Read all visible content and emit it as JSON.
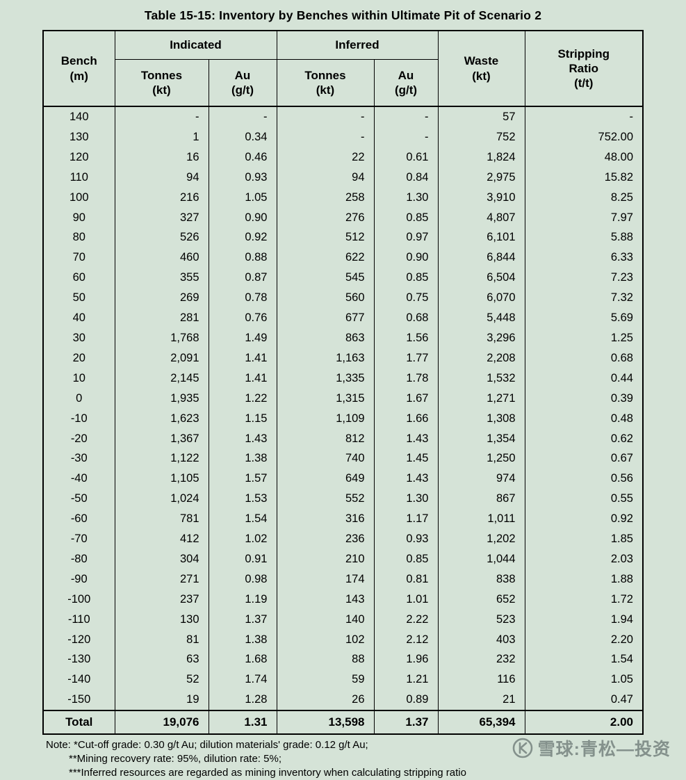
{
  "page": {
    "title": "Table 15-15: Inventory by Benches within Ultimate Pit of Scenario 2",
    "background": "#d5e3d7"
  },
  "table": {
    "headers": {
      "bench": "Bench\n(m)",
      "indicated": "Indicated",
      "inferred": "Inferred",
      "tonnes": "Tonnes\n(kt)",
      "au": "Au\n(g/t)",
      "waste": "Waste\n(kt)",
      "stripping": "Stripping\nRatio\n(t/t)"
    },
    "rows": [
      [
        "140",
        "-",
        "-",
        "-",
        "-",
        "57",
        "-"
      ],
      [
        "130",
        "1",
        "0.34",
        "-",
        "-",
        "752",
        "752.00"
      ],
      [
        "120",
        "16",
        "0.46",
        "22",
        "0.61",
        "1,824",
        "48.00"
      ],
      [
        "110",
        "94",
        "0.93",
        "94",
        "0.84",
        "2,975",
        "15.82"
      ],
      [
        "100",
        "216",
        "1.05",
        "258",
        "1.30",
        "3,910",
        "8.25"
      ],
      [
        "90",
        "327",
        "0.90",
        "276",
        "0.85",
        "4,807",
        "7.97"
      ],
      [
        "80",
        "526",
        "0.92",
        "512",
        "0.97",
        "6,101",
        "5.88"
      ],
      [
        "70",
        "460",
        "0.88",
        "622",
        "0.90",
        "6,844",
        "6.33"
      ],
      [
        "60",
        "355",
        "0.87",
        "545",
        "0.85",
        "6,504",
        "7.23"
      ],
      [
        "50",
        "269",
        "0.78",
        "560",
        "0.75",
        "6,070",
        "7.32"
      ],
      [
        "40",
        "281",
        "0.76",
        "677",
        "0.68",
        "5,448",
        "5.69"
      ],
      [
        "30",
        "1,768",
        "1.49",
        "863",
        "1.56",
        "3,296",
        "1.25"
      ],
      [
        "20",
        "2,091",
        "1.41",
        "1,163",
        "1.77",
        "2,208",
        "0.68"
      ],
      [
        "10",
        "2,145",
        "1.41",
        "1,335",
        "1.78",
        "1,532",
        "0.44"
      ],
      [
        "0",
        "1,935",
        "1.22",
        "1,315",
        "1.67",
        "1,271",
        "0.39"
      ],
      [
        "-10",
        "1,623",
        "1.15",
        "1,109",
        "1.66",
        "1,308",
        "0.48"
      ],
      [
        "-20",
        "1,367",
        "1.43",
        "812",
        "1.43",
        "1,354",
        "0.62"
      ],
      [
        "-30",
        "1,122",
        "1.38",
        "740",
        "1.45",
        "1,250",
        "0.67"
      ],
      [
        "-40",
        "1,105",
        "1.57",
        "649",
        "1.43",
        "974",
        "0.56"
      ],
      [
        "-50",
        "1,024",
        "1.53",
        "552",
        "1.30",
        "867",
        "0.55"
      ],
      [
        "-60",
        "781",
        "1.54",
        "316",
        "1.17",
        "1,011",
        "0.92"
      ],
      [
        "-70",
        "412",
        "1.02",
        "236",
        "0.93",
        "1,202",
        "1.85"
      ],
      [
        "-80",
        "304",
        "0.91",
        "210",
        "0.85",
        "1,044",
        "2.03"
      ],
      [
        "-90",
        "271",
        "0.98",
        "174",
        "0.81",
        "838",
        "1.88"
      ],
      [
        "-100",
        "237",
        "1.19",
        "143",
        "1.01",
        "652",
        "1.72"
      ],
      [
        "-110",
        "130",
        "1.37",
        "140",
        "2.22",
        "523",
        "1.94"
      ],
      [
        "-120",
        "81",
        "1.38",
        "102",
        "2.12",
        "403",
        "2.20"
      ],
      [
        "-130",
        "63",
        "1.68",
        "88",
        "1.96",
        "232",
        "1.54"
      ],
      [
        "-140",
        "52",
        "1.74",
        "59",
        "1.21",
        "116",
        "1.05"
      ],
      [
        "-150",
        "19",
        "1.28",
        "26",
        "0.89",
        "21",
        "0.47"
      ]
    ],
    "total": [
      "Total",
      "19,076",
      "1.31",
      "13,598",
      "1.37",
      "65,394",
      "2.00"
    ]
  },
  "notes": [
    "Note: *Cut-off grade: 0.30 g/t Au; dilution materials' grade: 0.12 g/t Au;",
    "**Mining recovery rate: 95%, dilution rate: 5%;",
    "***Inferred resources are regarded as mining inventory when calculating stripping ratio"
  ],
  "watermark": {
    "text": "雪球:青松—投资"
  }
}
